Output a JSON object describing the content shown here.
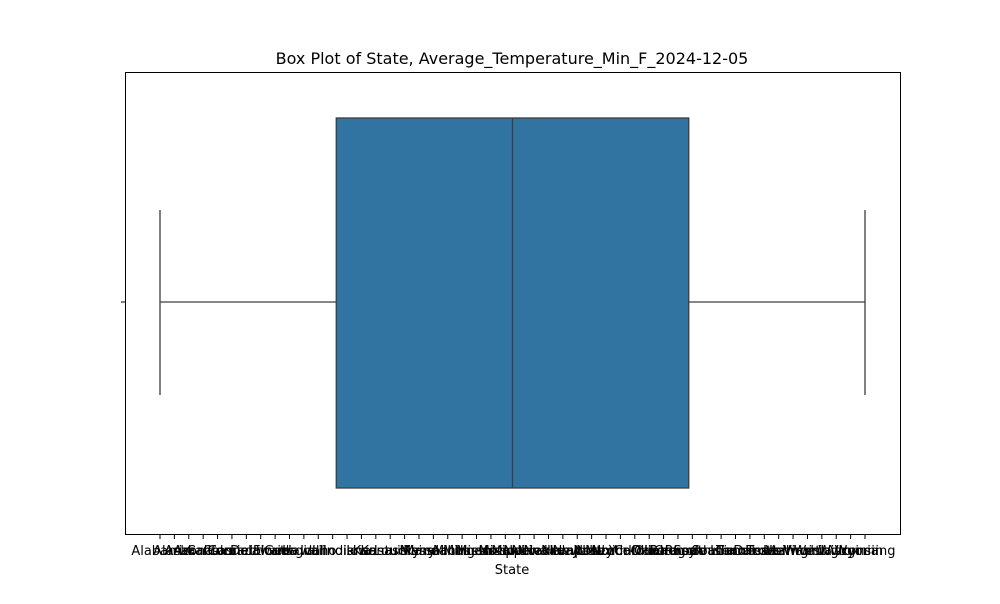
{
  "chart_data": {
    "type": "box",
    "title": "Box Plot of State, Average_Temperature_Min_F_2024-12-05",
    "xlabel": "State",
    "ylabel": "",
    "categories": [
      "Alabama",
      "Alaska",
      "Arizona",
      "Arkansas",
      "California",
      "Colorado",
      "Connecticut",
      "Delaware",
      "Florida",
      "Georgia",
      "Hawaii",
      "Idaho",
      "Illinois",
      "Indiana",
      "Iowa",
      "Kansas",
      "Kentucky",
      "Louisiana",
      "Maine",
      "Maryland",
      "Massachusetts",
      "Michigan",
      "Minnesota",
      "Mississippi",
      "Missouri",
      "Montana",
      "Nebraska",
      "Nevada",
      "New Hampshire",
      "New Jersey",
      "New Mexico",
      "New York",
      "North Carolina",
      "North Dakota",
      "Ohio",
      "Oklahoma",
      "Oregon",
      "Pennsylvania",
      "Rhode Island",
      "South Carolina",
      "South Dakota",
      "Tennessee",
      "Texas",
      "Utah",
      "Vermont",
      "Virginia",
      "Washington",
      "West Virginia",
      "Wisconsin",
      "Wyoming"
    ],
    "box": {
      "whisker_low": 0,
      "q1": 12.25,
      "median": 24.5,
      "q3": 36.75,
      "whisker_high": 49
    },
    "colors": {
      "box_fill": "#3274a1",
      "line": "#3d3d3d"
    },
    "grid": false,
    "legend": "none"
  }
}
